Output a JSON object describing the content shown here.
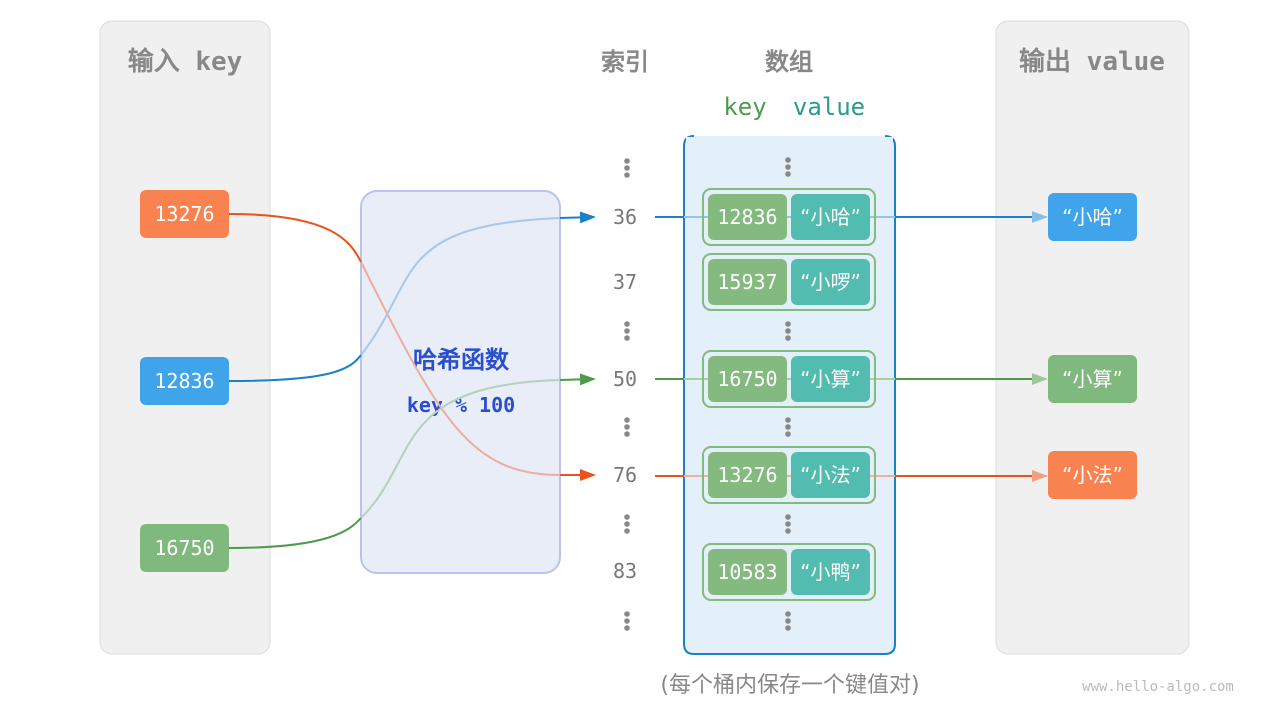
{
  "headers": {
    "input": "输入 key",
    "index": "索引",
    "array": "数组",
    "output": "输出 value",
    "key": "key",
    "value": "value"
  },
  "hash": {
    "title": "哈希函数",
    "formula": "key % 100"
  },
  "inputs": [
    {
      "key": "13276",
      "color": "#f98350"
    },
    {
      "key": "12836",
      "color": "#3fa4ea"
    },
    {
      "key": "16750",
      "color": "#80b97d"
    }
  ],
  "indices": [
    "36",
    "37",
    "50",
    "76",
    "83"
  ],
  "buckets": [
    {
      "key": "12836",
      "value": "“小哈”"
    },
    {
      "key": "15937",
      "value": "“小啰”"
    },
    {
      "key": "16750",
      "value": "“小算”"
    },
    {
      "key": "13276",
      "value": "“小法”"
    },
    {
      "key": "10583",
      "value": "“小鸭”"
    }
  ],
  "outputs": [
    {
      "value": "“小哈”",
      "color": "#3fa4ea"
    },
    {
      "value": "“小算”",
      "color": "#80b97d"
    },
    {
      "value": "“小法”",
      "color": "#f98350"
    }
  ],
  "caption": "(每个桶内保存一个键值对)",
  "watermark": "www.hello-algo.com",
  "colors": {
    "orange": "#e8521c",
    "blue": "#1c7fc9",
    "green": "#4e9a4d",
    "bucket_key": "#84b97f",
    "bucket_value": "#52bcb0"
  }
}
